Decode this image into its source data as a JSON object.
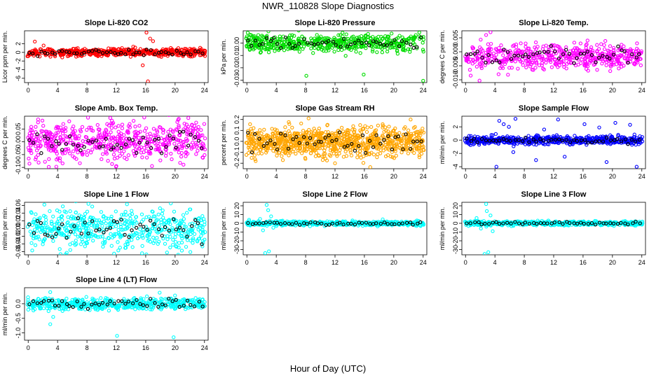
{
  "figure": {
    "title": "NWR_110828  Slope Diagnostics",
    "xlabel": "Hour of Day (UTC)"
  },
  "chart_data": [
    {
      "type": "scatter",
      "title": "Slope Li-820 CO2",
      "ylabel": "Licor ppm per min.",
      "color": "#ff0000",
      "xlim": [
        -0.5,
        24.5
      ],
      "ylim": [
        -7,
        5
      ],
      "xticks": [
        0,
        4,
        8,
        12,
        16,
        20,
        24
      ],
      "yticks": [
        -6,
        -4,
        -2,
        0,
        2
      ],
      "n": 560,
      "center": 0,
      "spread": 0.45,
      "seed": 11,
      "bgscale": 1.0,
      "outliers": [
        [
          16.1,
          4.6
        ],
        [
          16.6,
          3.2
        ],
        [
          17.0,
          2.6
        ],
        [
          16.3,
          -6.7
        ],
        [
          15.6,
          -3.0
        ],
        [
          0.9,
          2.5
        ],
        [
          2.1,
          1.6
        ]
      ]
    },
    {
      "type": "scatter",
      "title": "Slope Li-820 Pressure",
      "ylabel": "kPa per min.",
      "color": "#00dd00",
      "xlim": [
        -0.5,
        24.5
      ],
      "ylim": [
        -0.032,
        0.01
      ],
      "xticks": [
        0,
        4,
        8,
        12,
        16,
        20,
        24
      ],
      "yticks": [
        -0.03,
        -0.02,
        -0.01,
        0.0
      ],
      "n": 520,
      "center": 0.0,
      "spread": 0.0035,
      "seed": 23,
      "bgscale": 1.0,
      "outliers": [
        [
          0.6,
          0.0065
        ],
        [
          8.1,
          -0.0265
        ],
        [
          15.9,
          -0.0255
        ],
        [
          24.0,
          -0.0305
        ],
        [
          23.5,
          0.0055
        ],
        [
          16.5,
          0.0075
        ],
        [
          0.4,
          -0.0055
        ]
      ]
    },
    {
      "type": "scatter",
      "title": "Slope Li-820 Temp.",
      "ylabel": "degrees C per min.",
      "color": "#ff00ff",
      "xlim": [
        -0.5,
        24.5
      ],
      "ylim": [
        -0.011,
        0.0075
      ],
      "xticks": [
        0,
        4,
        8,
        12,
        16,
        20,
        24
      ],
      "yticks": [
        -0.01,
        -0.005,
        0.0,
        0.005
      ],
      "n": 520,
      "center": -0.0015,
      "spread": 0.0022,
      "seed": 37,
      "bgscale": 1.0,
      "outliers": [
        [
          0.7,
          -0.0085
        ],
        [
          1.9,
          -0.0103
        ],
        [
          3.4,
          0.007
        ],
        [
          2.8,
          0.006
        ],
        [
          4.5,
          -0.008
        ]
      ]
    },
    {
      "type": "scatter",
      "title": "Slope Amb. Box Temp.",
      "ylabel": "degrees C per min.",
      "color": "#ff00ff",
      "xlim": [
        -0.5,
        24.5
      ],
      "ylim": [
        -0.105,
        0.1
      ],
      "xticks": [
        0,
        4,
        8,
        12,
        16,
        20,
        24
      ],
      "yticks": [
        -0.1,
        -0.05,
        0.0,
        0.05
      ],
      "n": 560,
      "center": 0.0,
      "spread": 0.038,
      "seed": 41,
      "bgscale": 1.0,
      "outliers": [
        [
          2.8,
          -0.098
        ],
        [
          20.5,
          0.09
        ],
        [
          15.8,
          0.095
        ],
        [
          12.0,
          -0.095
        ]
      ]
    },
    {
      "type": "scatter",
      "title": "Slope Gas Stream RH",
      "ylabel": "percent per min.",
      "color": "#ffa500",
      "xlim": [
        -0.5,
        24.5
      ],
      "ylim": [
        -0.25,
        0.23
      ],
      "xticks": [
        0,
        4,
        8,
        12,
        16,
        20,
        24
      ],
      "yticks": [
        -0.2,
        -0.1,
        0.0,
        0.1,
        0.2
      ],
      "n": 900,
      "center": 0.0,
      "spread": 0.075,
      "seed": 53,
      "bgscale": 0.9,
      "outliers": [
        [
          8.4,
          0.21
        ],
        [
          16.8,
          -0.235
        ],
        [
          12.0,
          -0.2
        ],
        [
          22.3,
          0.2
        ],
        [
          1.2,
          -0.18
        ]
      ]
    },
    {
      "type": "scatter",
      "title": "Slope Sample Flow",
      "ylabel": "ml/min per min.",
      "color": "#0000ff",
      "xlim": [
        -0.5,
        24.5
      ],
      "ylim": [
        -4.3,
        3.6
      ],
      "xticks": [
        0,
        4,
        8,
        12,
        16,
        20,
        24
      ],
      "yticks": [
        -4,
        -2,
        0,
        2
      ],
      "n": 560,
      "center": 0.0,
      "spread": 0.35,
      "seed": 67,
      "bgscale": 0.9,
      "outliers": [
        [
          4.6,
          2.9
        ],
        [
          5.2,
          2.4
        ],
        [
          5.9,
          2.0
        ],
        [
          4.2,
          -4.0
        ],
        [
          6.8,
          3.2
        ],
        [
          9.6,
          -3.0
        ],
        [
          12.6,
          3.1
        ],
        [
          13.5,
          -2.5
        ],
        [
          16.2,
          2.4
        ],
        [
          19.2,
          -3.3
        ],
        [
          20.4,
          2.6
        ],
        [
          23.3,
          -4.0
        ],
        [
          6.5,
          -1.8
        ],
        [
          10.7,
          1.6
        ],
        [
          18.2,
          1.9
        ],
        [
          22.4,
          2.3
        ]
      ]
    },
    {
      "type": "scatter",
      "title": "Slope Line 1 Flow",
      "ylabel": "ml/min per min.",
      "color": "#00ffff",
      "xlim": [
        -0.5,
        24.5
      ],
      "ylim": [
        -0.068,
        0.068
      ],
      "xticks": [
        0,
        4,
        8,
        12,
        16,
        20,
        24
      ],
      "yticks": [
        -0.06,
        -0.04,
        -0.02,
        0.0,
        0.02,
        0.04,
        0.06
      ],
      "n": 520,
      "center": 0.0,
      "spread": 0.026,
      "seed": 79,
      "bgscale": 1.0,
      "outliers": [
        [
          8.2,
          0.064
        ],
        [
          15.5,
          -0.064
        ],
        [
          18.9,
          -0.062
        ],
        [
          2.2,
          0.062
        ]
      ]
    },
    {
      "type": "scatter",
      "title": "Slope Line 2 Flow",
      "ylabel": "ml/min per min.",
      "color": "#00ffff",
      "xlim": [
        -0.5,
        24.5
      ],
      "ylim": [
        -36,
        24
      ],
      "xticks": [
        0,
        4,
        8,
        12,
        16,
        20,
        24
      ],
      "yticks": [
        -30,
        -20,
        -10,
        0,
        10,
        20
      ],
      "n": 560,
      "center": 0.0,
      "spread": 1.2,
      "seed": 83,
      "bgscale": 1.0,
      "outliers": [
        [
          2.7,
          21
        ],
        [
          3.0,
          -32
        ],
        [
          2.5,
          -34
        ],
        [
          2.9,
          15
        ],
        [
          3.3,
          8
        ],
        [
          2.2,
          -8
        ],
        [
          1.8,
          5
        ],
        [
          3.6,
          -5
        ],
        [
          0.3,
          4
        ],
        [
          18.5,
          4.5
        ],
        [
          17.8,
          -3.5
        ]
      ]
    },
    {
      "type": "scatter",
      "title": "Slope Line 3 Flow",
      "ylabel": "ml/min per min.",
      "color": "#00ffff",
      "xlim": [
        -0.5,
        24.5
      ],
      "ylim": [
        -36,
        24
      ],
      "xticks": [
        0,
        4,
        8,
        12,
        16,
        20,
        24
      ],
      "yticks": [
        -30,
        -20,
        -10,
        0,
        10,
        20
      ],
      "n": 560,
      "center": 0.0,
      "spread": 1.2,
      "seed": 97,
      "bgscale": 1.0,
      "outliers": [
        [
          2.8,
          22
        ],
        [
          3.1,
          -33
        ],
        [
          2.6,
          -35
        ],
        [
          2.9,
          14
        ],
        [
          3.4,
          9
        ],
        [
          2.1,
          -6
        ],
        [
          1.5,
          6
        ],
        [
          3.7,
          -9
        ],
        [
          0.4,
          -3
        ]
      ]
    },
    {
      "type": "scatter",
      "title": "Slope Line 4 (LT) Flow",
      "ylabel": "ml/min per min.",
      "color": "#00ffff",
      "xlim": [
        -0.5,
        24.5
      ],
      "ylim": [
        -1.25,
        0.55
      ],
      "xticks": [
        0,
        4,
        8,
        12,
        16,
        20,
        24
      ],
      "yticks": [
        -1.0,
        -0.5,
        0.0
      ],
      "n": 520,
      "center": 0.0,
      "spread": 0.1,
      "seed": 101,
      "bgscale": 1.0,
      "outliers": [
        [
          3.0,
          -0.7
        ],
        [
          12.1,
          -1.1
        ],
        [
          19.8,
          -1.15
        ],
        [
          3.4,
          -0.45
        ],
        [
          3.0,
          0.4
        ],
        [
          17.9,
          0.38
        ]
      ]
    }
  ]
}
